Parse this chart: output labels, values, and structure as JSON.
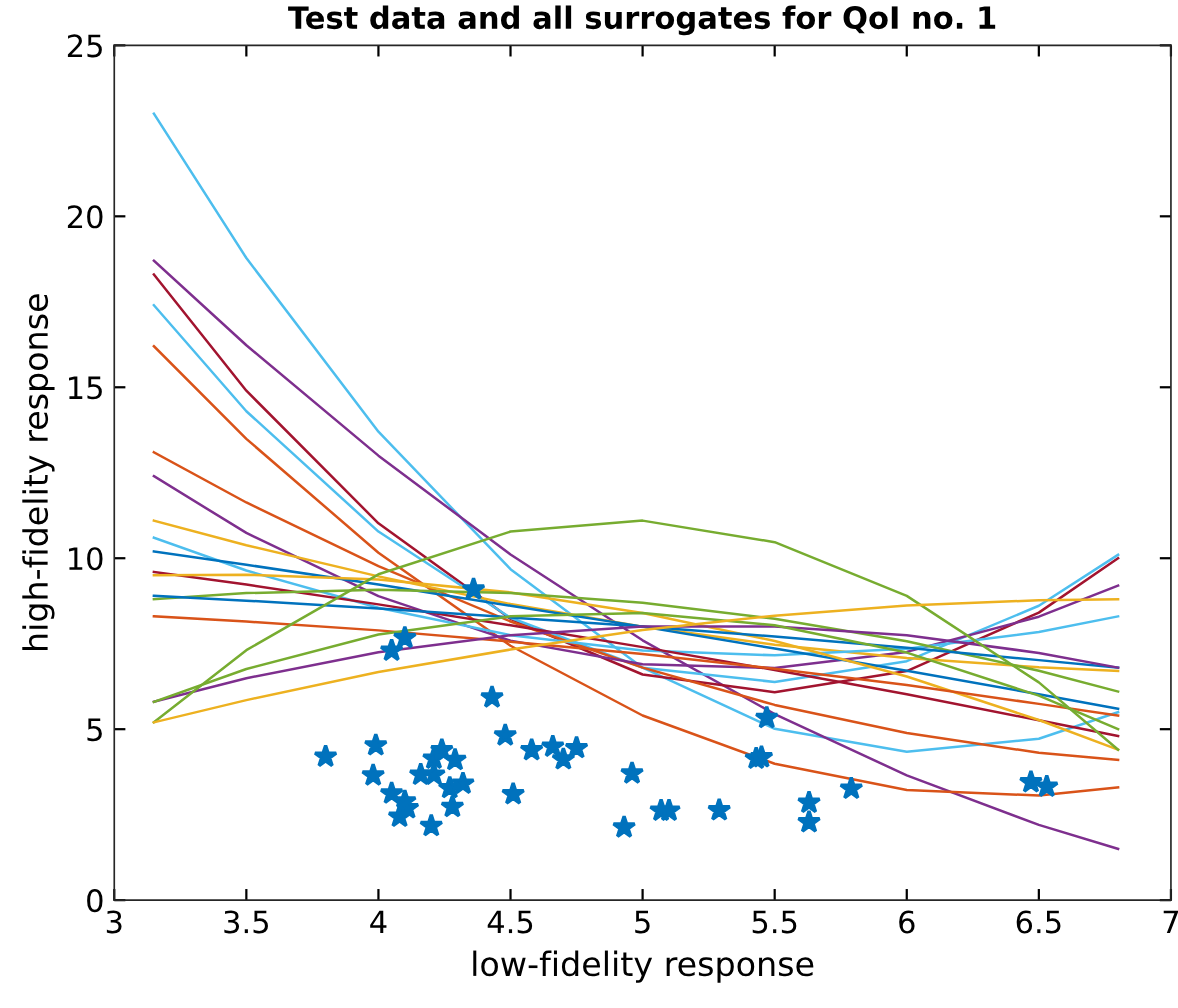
{
  "chart_data": {
    "type": "line",
    "title": "Test data and all surrogates for QoI no. 1",
    "xlabel": "low-fidelity response",
    "ylabel": "high-fidelity response",
    "xlim": [
      3,
      7
    ],
    "ylim": [
      0,
      25
    ],
    "xticks": [
      3,
      3.5,
      4,
      4.5,
      5,
      5.5,
      6,
      6.5,
      7
    ],
    "yticks": [
      0,
      5,
      10,
      15,
      20,
      25
    ],
    "grid": false,
    "legend": false,
    "line_style": "solid",
    "marker": "none",
    "series": [
      {
        "color": "#4dbeee",
        "x": [
          3.15,
          3.5,
          4,
          4.5,
          5,
          5.5,
          6,
          6.5,
          6.8
        ],
        "values": [
          23.0,
          18.78,
          13.7,
          9.68,
          6.8,
          5.01,
          4.34,
          4.72,
          5.5
        ]
      },
      {
        "color": "#7e2f8e",
        "x": [
          3.15,
          3.5,
          4,
          4.5,
          5,
          5.5,
          6,
          6.5,
          6.8
        ],
        "values": [
          18.7,
          16.23,
          13.0,
          10.11,
          7.6,
          5.44,
          3.65,
          2.2,
          1.5
        ]
      },
      {
        "color": "#a2142f",
        "x": [
          3.15,
          3.5,
          4,
          4.5,
          5,
          5.5,
          6,
          6.5,
          6.8
        ],
        "values": [
          18.3,
          14.9,
          11.02,
          8.23,
          6.6,
          6.08,
          6.7,
          8.41,
          10.0
        ]
      },
      {
        "color": "#4dbeee",
        "x": [
          3.15,
          3.5,
          4,
          4.5,
          5,
          5.5,
          6,
          6.5,
          6.8
        ],
        "values": [
          17.4,
          14.3,
          10.78,
          8.26,
          6.8,
          6.38,
          6.99,
          8.61,
          10.1
        ]
      },
      {
        "color": "#d95319",
        "x": [
          3.15,
          3.5,
          4,
          4.5,
          5,
          5.5,
          6,
          6.5,
          6.8
        ],
        "values": [
          16.2,
          13.49,
          10.16,
          7.44,
          5.4,
          3.99,
          3.22,
          3.06,
          3.3
        ]
      },
      {
        "color": "#d95319",
        "x": [
          3.15,
          3.5,
          4,
          4.5,
          5,
          5.5,
          6,
          6.5,
          6.8
        ],
        "values": [
          13.1,
          11.63,
          9.77,
          8.15,
          6.8,
          5.71,
          4.89,
          4.31,
          4.1
        ]
      },
      {
        "color": "#7e2f8e",
        "x": [
          3.15,
          3.5,
          4,
          4.5,
          5,
          5.5,
          6,
          6.5,
          6.8
        ],
        "values": [
          12.4,
          10.74,
          8.89,
          7.59,
          6.9,
          6.79,
          7.26,
          8.29,
          9.2
        ]
      },
      {
        "color": "#edb120",
        "x": [
          3.15,
          3.5,
          4,
          4.5,
          5,
          5.5,
          6,
          6.5,
          6.8
        ],
        "values": [
          11.1,
          10.38,
          9.47,
          8.66,
          8.0,
          7.47,
          7.08,
          6.81,
          6.7
        ]
      },
      {
        "color": "#4dbeee",
        "x": [
          3.15,
          3.5,
          4,
          4.5,
          5,
          5.5,
          6,
          6.5,
          6.8
        ],
        "values": [
          10.6,
          9.64,
          8.55,
          7.75,
          7.3,
          7.16,
          7.35,
          7.84,
          8.3
        ]
      },
      {
        "color": "#0072bd",
        "x": [
          3.15,
          3.5,
          4,
          4.5,
          5,
          5.5,
          6,
          6.5,
          6.8
        ],
        "values": [
          10.2,
          9.81,
          9.23,
          8.61,
          8.0,
          7.36,
          6.71,
          6.02,
          5.6
        ]
      },
      {
        "color": "#a2142f",
        "x": [
          3.15,
          3.5,
          4,
          4.5,
          5,
          5.5,
          6,
          6.5,
          6.8
        ],
        "values": [
          9.6,
          9.23,
          8.65,
          8.04,
          7.4,
          6.73,
          6.02,
          5.26,
          4.8
        ]
      },
      {
        "color": "#edb120",
        "x": [
          3.15,
          3.5,
          4,
          4.5,
          5,
          5.5,
          6,
          6.5,
          6.8
        ],
        "values": [
          9.5,
          9.52,
          9.38,
          9.0,
          8.4,
          7.58,
          6.54,
          5.27,
          4.4
        ]
      },
      {
        "color": "#77ac30",
        "x": [
          3.15,
          3.5,
          4,
          4.5,
          5,
          5.5,
          6,
          6.5,
          6.8
        ],
        "values": [
          8.8,
          8.98,
          9.08,
          8.98,
          8.7,
          8.23,
          7.57,
          6.71,
          6.1
        ]
      },
      {
        "color": "#0072bd",
        "x": [
          3.15,
          3.5,
          4,
          4.5,
          5,
          5.5,
          6,
          6.5,
          6.8
        ],
        "values": [
          8.9,
          8.76,
          8.53,
          8.27,
          8.0,
          7.71,
          7.38,
          7.02,
          6.8
        ]
      },
      {
        "color": "#d95319",
        "x": [
          3.15,
          3.5,
          4,
          4.5,
          5,
          5.5,
          6,
          6.5,
          6.8
        ],
        "values": [
          8.3,
          8.15,
          7.89,
          7.56,
          7.2,
          6.77,
          6.29,
          5.74,
          5.4
        ]
      },
      {
        "color": "#7e2f8e",
        "x": [
          3.15,
          3.5,
          4,
          4.5,
          5,
          5.5,
          6,
          6.5,
          6.8
        ],
        "values": [
          5.8,
          6.49,
          7.25,
          7.75,
          8.0,
          8.0,
          7.75,
          7.23,
          6.8
        ]
      },
      {
        "color": "#77ac30",
        "x": [
          3.15,
          3.5,
          4,
          4.5,
          5,
          5.5,
          6,
          6.5,
          6.8
        ],
        "values": [
          5.8,
          6.76,
          7.77,
          8.3,
          8.4,
          8.04,
          7.24,
          5.98,
          5.0
        ]
      },
      {
        "color": "#77ac30",
        "x": [
          3.15,
          3.5,
          4,
          4.5,
          5,
          5.5,
          6,
          6.5,
          6.8
        ],
        "values": [
          5.2,
          7.31,
          9.53,
          10.78,
          11.1,
          10.47,
          8.9,
          6.37,
          4.4
        ]
      },
      {
        "color": "#edb120",
        "x": [
          3.15,
          3.5,
          4,
          4.5,
          5,
          5.5,
          6,
          6.5,
          6.8
        ],
        "values": [
          5.2,
          5.85,
          6.67,
          7.33,
          7.9,
          8.32,
          8.62,
          8.77,
          8.8
        ]
      },
      {
        "type": "scatter",
        "marker": "star",
        "color": "#0072bd",
        "x": [
          3.8,
          3.99,
          3.98,
          4.05,
          4.1,
          4.08,
          4.11,
          4.2,
          4.16,
          4.21,
          4.21,
          4.24,
          4.29,
          4.27,
          4.32,
          4.28,
          4.05,
          4.1,
          4.36,
          4.43,
          4.48,
          4.51,
          4.58,
          4.66,
          4.7,
          4.75,
          4.96,
          4.93,
          5.07,
          5.1,
          5.29,
          5.43,
          5.45,
          5.47,
          5.63,
          5.63,
          5.79,
          6.47,
          6.53
        ],
        "values": [
          4.2,
          4.53,
          3.65,
          3.12,
          2.89,
          2.44,
          2.69,
          2.17,
          3.67,
          3.67,
          4.14,
          4.39,
          4.1,
          3.28,
          3.41,
          2.73,
          7.3,
          7.67,
          9.09,
          5.93,
          4.82,
          3.1,
          4.39,
          4.49,
          4.12,
          4.45,
          3.71,
          2.13,
          2.62,
          2.62,
          2.63,
          4.14,
          4.18,
          5.33,
          2.85,
          2.28,
          3.26,
          3.45,
          3.32
        ]
      }
    ]
  }
}
